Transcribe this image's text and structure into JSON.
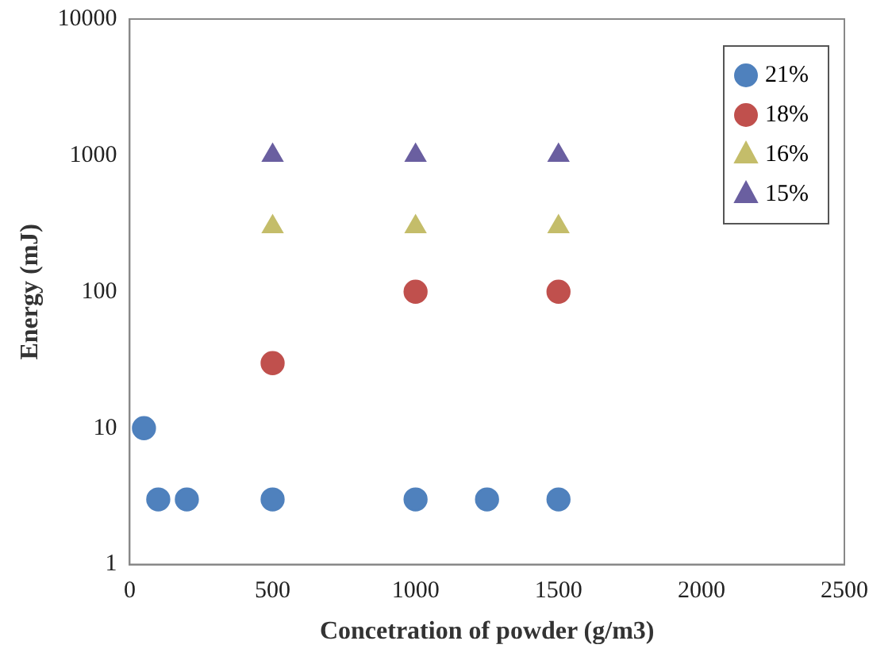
{
  "chart_data": {
    "type": "scatter",
    "xlabel": "Concetration of powder (g/m3)",
    "ylabel": "Energy (mJ)",
    "log": "y",
    "xlim": [
      0,
      2500
    ],
    "xticks": [
      0,
      500,
      1000,
      1500,
      2000,
      2500
    ],
    "ylim": [
      1,
      10000
    ],
    "yticks": [
      1,
      10,
      100,
      1000,
      10000
    ],
    "grid": false,
    "legend": "top right",
    "series": [
      {
        "name": "21%",
        "color": "#4f81bd",
        "marker": "circle",
        "x": [
          50,
          100,
          200,
          500,
          1000,
          1250,
          1500
        ],
        "values": [
          10,
          3,
          3,
          3,
          3,
          3,
          3
        ]
      },
      {
        "name": "18%",
        "color": "#c0504d",
        "marker": "circle",
        "x": [
          500,
          1000,
          1500
        ],
        "values": [
          30,
          100,
          100
        ]
      },
      {
        "name": "16%",
        "color": "#c4bd6a",
        "marker": "triangle",
        "x": [
          500,
          1000,
          1500
        ],
        "values": [
          300,
          300,
          300
        ]
      },
      {
        "name": "15%",
        "color": "#6a5fa0",
        "marker": "triangle",
        "x": [
          500,
          1000,
          1500
        ],
        "values": [
          1000,
          1000,
          1000
        ]
      }
    ]
  }
}
